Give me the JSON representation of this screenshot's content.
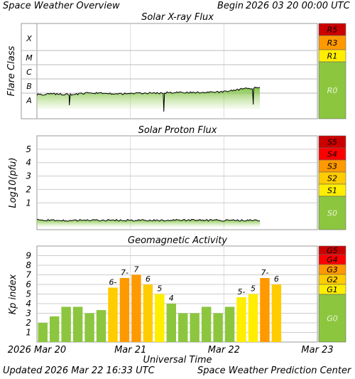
{
  "header": {
    "title": "Space Weather Overview",
    "begin_label": "Begin",
    "begin_value": "2026 03 20 00:00 UTC"
  },
  "footer": {
    "updated_label": "Updated",
    "updated_value": "2026 Mar 22 16:33 UTC",
    "source": "Space Weather Prediction Center"
  },
  "colors": {
    "green": "#8cc63f",
    "yellow": "#ffee00",
    "amber": "#ffcc00",
    "orange": "#ff9900",
    "deep_orange": "#ff6600",
    "red": "#ff0000",
    "dark_red": "#cc0000"
  },
  "chart_data": [
    {
      "type": "line",
      "title": "Solar X-ray Flux",
      "ylabel": "Flare Class",
      "classes": [
        "A",
        "B",
        "C",
        "M",
        "X"
      ],
      "ylim": [
        "A",
        "X"
      ],
      "x_range": [
        "2026-03-20",
        "2026-03-23"
      ],
      "x": [
        "03-20 00:00",
        "03-20 08:00",
        "03-20 12:00",
        "03-20 18:00",
        "03-21 00:00",
        "03-21 06:00",
        "03-21 08:00",
        "03-21 12:00",
        "03-21 18:00",
        "03-22 00:00",
        "03-22 06:00",
        "03-22 12:00",
        "03-22 14:00",
        "03-22 16:00"
      ],
      "values_class": [
        1.4,
        1.45,
        1.4,
        1.5,
        1.5,
        1.45,
        1.5,
        1.5,
        1.55,
        1.55,
        1.55,
        1.6,
        1.8,
        1.9
      ],
      "scale": [
        {
          "label": "R5",
          "color": "#cc0000"
        },
        {
          "label": "R3",
          "color": "#ff9900"
        },
        {
          "label": "R1",
          "color": "#ffee00"
        },
        {
          "label": "R0",
          "color": "#8cc63f"
        }
      ]
    },
    {
      "type": "line",
      "title": "Solar Proton Flux",
      "ylabel": "Log10(pfu)",
      "yticks": [
        1,
        2,
        3,
        4,
        5
      ],
      "ylim": [
        -1,
        6
      ],
      "x_range": [
        "2026-03-20",
        "2026-03-23"
      ],
      "values_log": [
        -0.3,
        -0.3,
        -0.3,
        -0.3,
        -0.3
      ],
      "scale": [
        {
          "label": "S5",
          "color": "#cc0000"
        },
        {
          "label": "S4",
          "color": "#ff0000"
        },
        {
          "label": "S3",
          "color": "#ff9900"
        },
        {
          "label": "S2",
          "color": "#ffcc00"
        },
        {
          "label": "S1",
          "color": "#ffee00"
        },
        {
          "label": "S0",
          "color": "#8cc63f"
        }
      ]
    },
    {
      "type": "bar",
      "title": "Geomagnetic Activity",
      "ylabel": "Kp index",
      "yticks": [
        1,
        2,
        3,
        4,
        5,
        6,
        7,
        8,
        9
      ],
      "ylim": [
        0,
        10
      ],
      "values": [
        2,
        2.67,
        3.67,
        3.67,
        3,
        3.33,
        5.67,
        6.67,
        7,
        6,
        5,
        4,
        3,
        3,
        3.67,
        3,
        3.67,
        4.67,
        5,
        6.67,
        6
      ],
      "bar_labels": [
        "",
        "",
        "",
        "",
        "",
        "",
        "6-",
        "7-",
        "7",
        "6",
        "5",
        "4",
        "",
        "",
        "",
        "",
        "",
        "5-",
        "5",
        "7-",
        "6"
      ],
      "xlabel": "Universal Time",
      "xtick_labels": [
        "2026 Mar 20",
        "Mar 21",
        "Mar 22",
        "Mar 23"
      ],
      "scale": [
        {
          "label": "G5",
          "color": "#cc0000"
        },
        {
          "label": "G4",
          "color": "#ff0000"
        },
        {
          "label": "G3",
          "color": "#ff9900"
        },
        {
          "label": "G2",
          "color": "#ffcc00"
        },
        {
          "label": "G1",
          "color": "#ffee00"
        },
        {
          "label": "G0",
          "color": "#8cc63f"
        }
      ]
    }
  ]
}
